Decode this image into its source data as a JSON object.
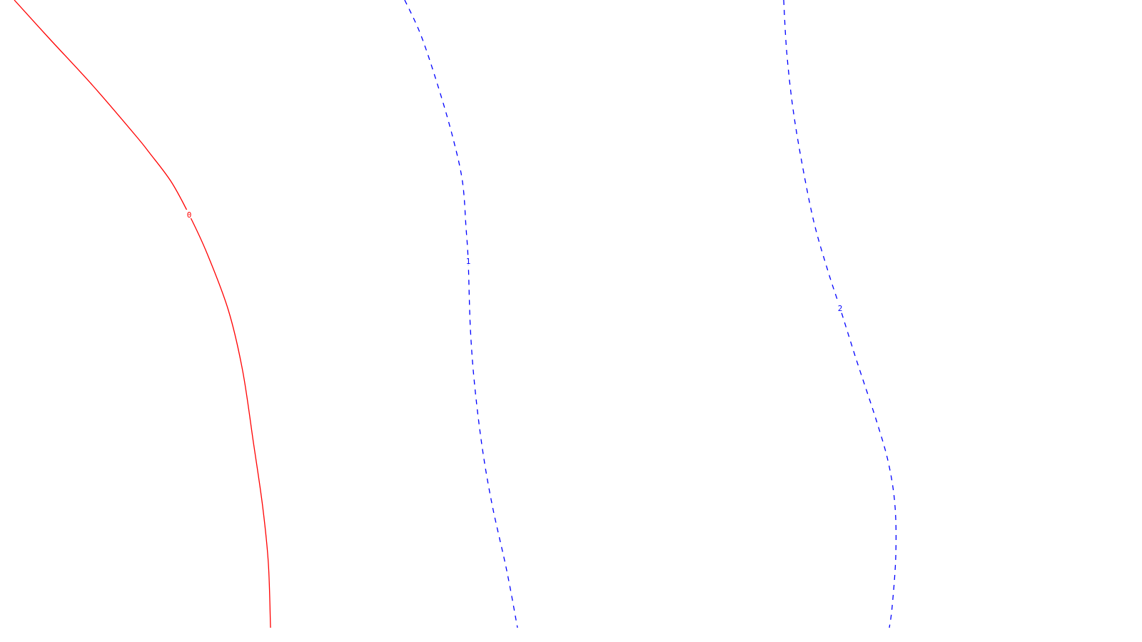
{
  "chart_data": {
    "type": "line",
    "title": "",
    "xlabel": "",
    "ylabel": "",
    "grid": false,
    "legend": "none",
    "series": [
      {
        "label": "0",
        "color": "#ff0000",
        "style": "solid",
        "points": [
          [
            20,
            0
          ],
          [
            70,
            55
          ],
          [
            130,
            120
          ],
          [
            190,
            190
          ],
          [
            210,
            215
          ],
          [
            240,
            255
          ],
          [
            265,
            301
          ],
          [
            290,
            355
          ],
          [
            320,
            435
          ],
          [
            340,
            520
          ],
          [
            355,
            620
          ],
          [
            368,
            710
          ],
          [
            376,
            790
          ],
          [
            379,
            880
          ]
        ]
      },
      {
        "label": "1",
        "color": "#0000ff",
        "style": "dashed",
        "points": [
          [
            567,
            0
          ],
          [
            590,
            50
          ],
          [
            615,
            125
          ],
          [
            635,
            195
          ],
          [
            648,
            255
          ],
          [
            653,
            320
          ],
          [
            656,
            366
          ],
          [
            659,
            460
          ],
          [
            665,
            540
          ],
          [
            676,
            630
          ],
          [
            690,
            710
          ],
          [
            710,
            800
          ],
          [
            725,
            880
          ]
        ]
      },
      {
        "label": "2",
        "color": "#0000ff",
        "style": "dashed",
        "points": [
          [
            1098,
            0
          ],
          [
            1102,
            70
          ],
          [
            1110,
            145
          ],
          [
            1122,
            220
          ],
          [
            1140,
            310
          ],
          [
            1160,
            380
          ],
          [
            1177,
            432
          ],
          [
            1200,
            505
          ],
          [
            1228,
            590
          ],
          [
            1245,
            650
          ],
          [
            1254,
            710
          ],
          [
            1255,
            780
          ],
          [
            1250,
            850
          ],
          [
            1246,
            880
          ]
        ]
      }
    ]
  }
}
